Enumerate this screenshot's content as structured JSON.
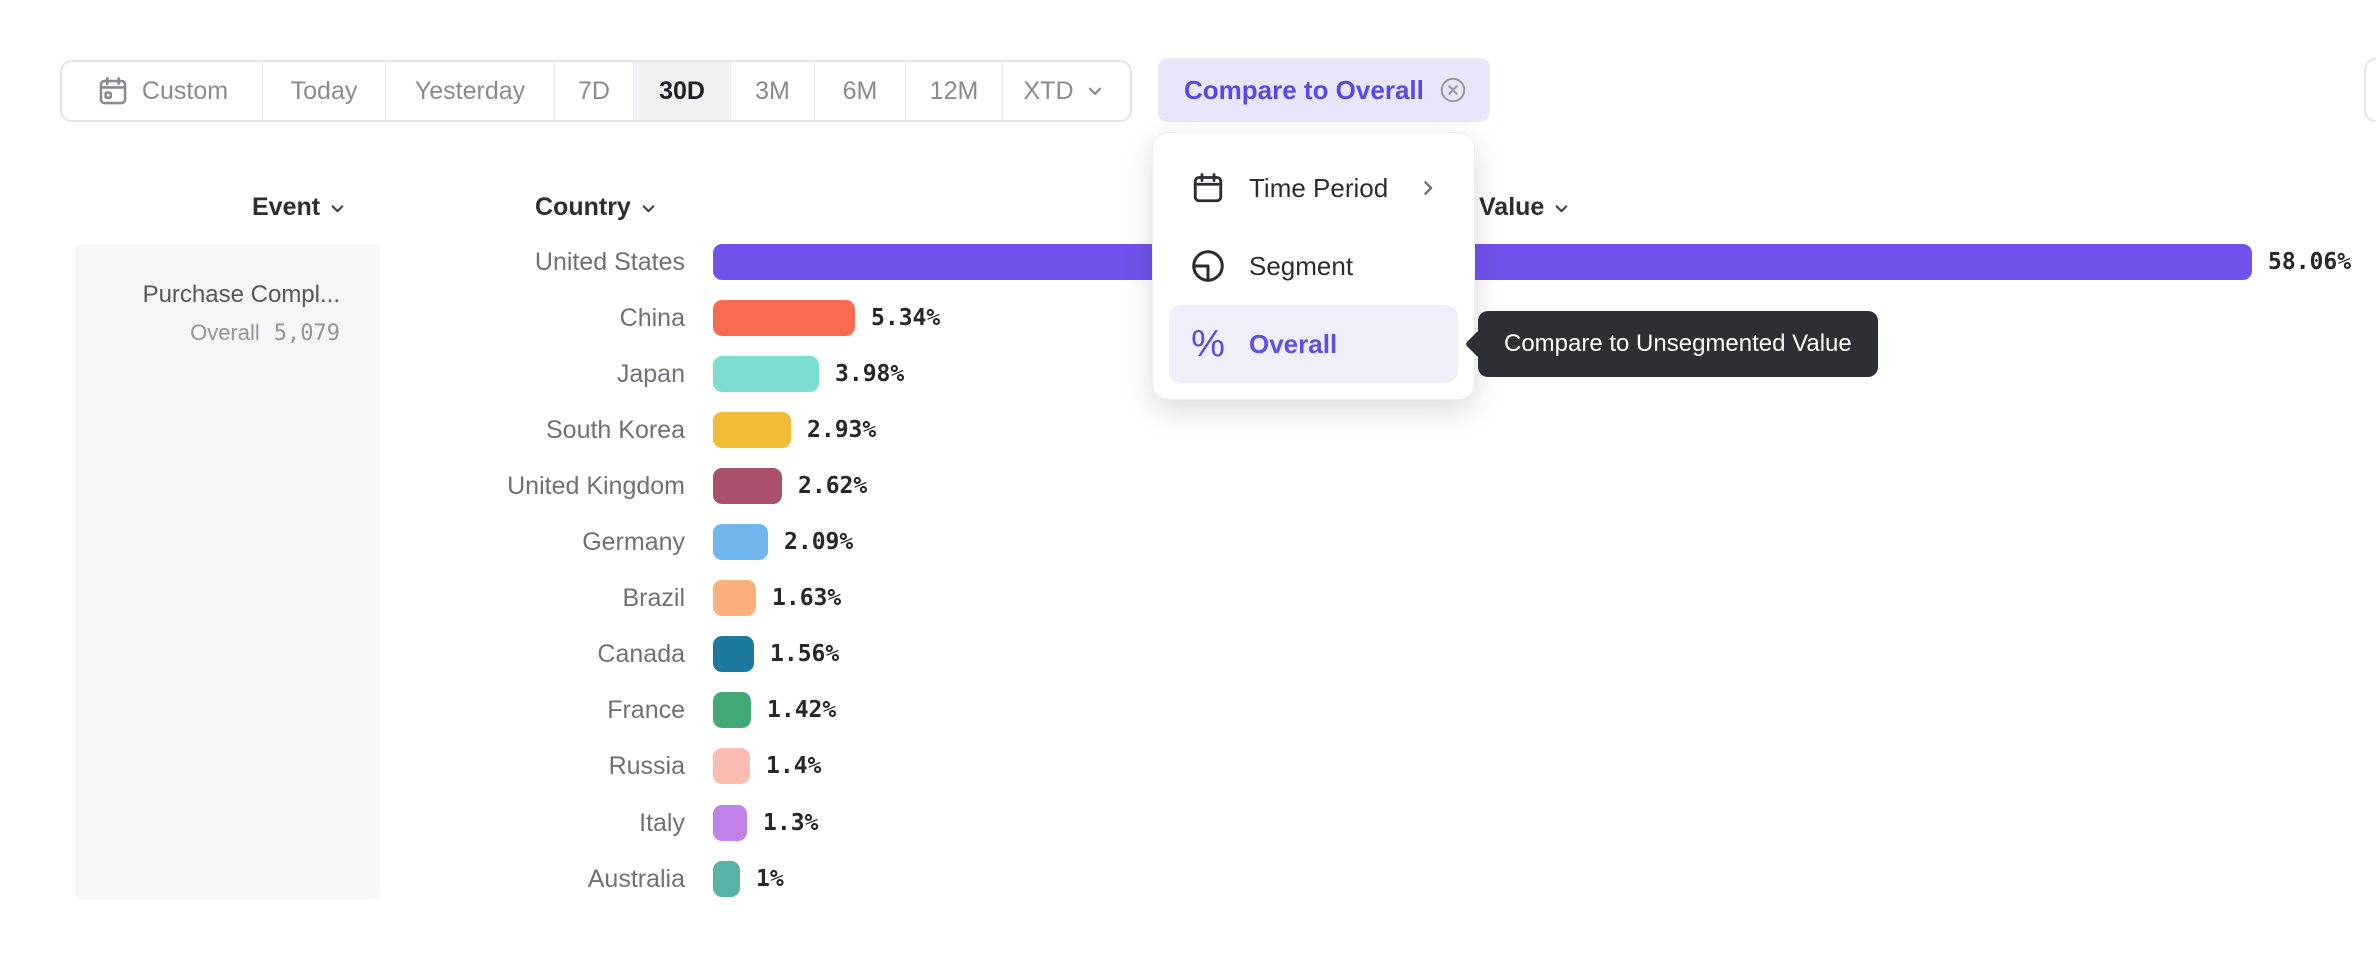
{
  "toolbar": {
    "buttons": [
      "Custom",
      "Today",
      "Yesterday",
      "7D",
      "30D",
      "3M",
      "6M",
      "12M",
      "XTD"
    ],
    "selected": "30D",
    "compare_chip_label": "Compare to Overall"
  },
  "dropdown": {
    "items": [
      {
        "label": "Time Period",
        "icon": "calendar-icon",
        "has_submenu": true
      },
      {
        "label": "Segment",
        "icon": "segment-icon",
        "has_submenu": false
      },
      {
        "label": "Overall",
        "icon": "percent-icon",
        "has_submenu": false,
        "selected": true
      }
    ]
  },
  "tooltip": {
    "text": "Compare to Unsegmented Value"
  },
  "headers": {
    "event": "Event",
    "country": "Country",
    "value": "Value"
  },
  "event_panel": {
    "name": "Purchase Compl...",
    "overall_label": "Overall",
    "overall_value": "5,079"
  },
  "chart_data": {
    "type": "bar",
    "orientation": "horizontal",
    "title": "",
    "xlabel": "Value",
    "ylabel": "Country",
    "xlim": [
      0,
      58.06
    ],
    "grid": false,
    "categories": [
      "United States",
      "China",
      "Japan",
      "South Korea",
      "United Kingdom",
      "Germany",
      "Brazil",
      "Canada",
      "France",
      "Russia",
      "Italy",
      "Australia"
    ],
    "values": [
      58.06,
      5.34,
      3.98,
      2.93,
      2.62,
      2.09,
      1.63,
      1.56,
      1.42,
      1.4,
      1.3,
      1
    ],
    "value_labels": [
      "58.06%",
      "5.34%",
      "3.98%",
      "2.93%",
      "2.62%",
      "2.09%",
      "1.63%",
      "1.56%",
      "1.42%",
      "1.4%",
      "1.3%",
      "1%"
    ],
    "colors": [
      "#7152ec",
      "#f96b51",
      "#7cddd1",
      "#f4bb36",
      "#a9506a",
      "#70b6ef",
      "#fbaf79",
      "#1d7a9e",
      "#42a876",
      "#fbbdb1",
      "#c181e8",
      "#57b3a8"
    ]
  }
}
